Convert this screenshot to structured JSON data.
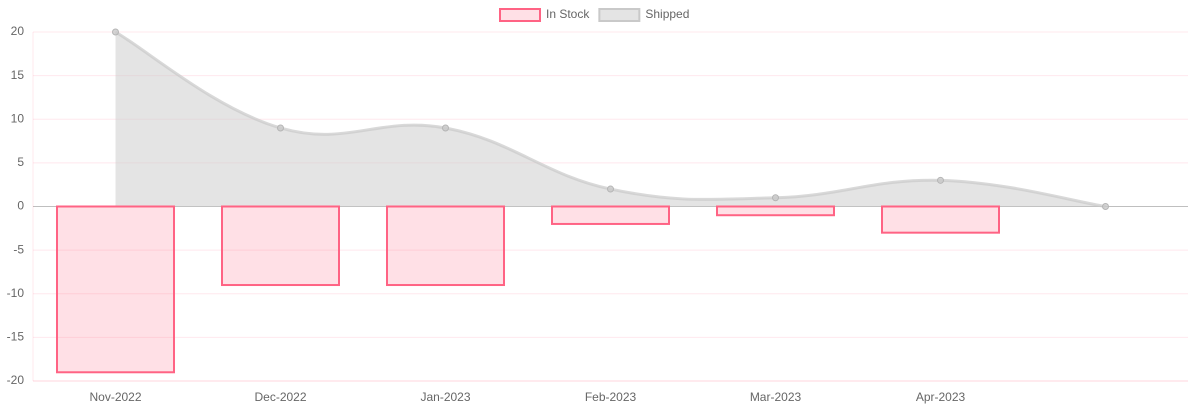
{
  "chart_data": {
    "type": "bar-line",
    "categories": [
      "Nov-2022",
      "Dec-2022",
      "Jan-2023",
      "Feb-2023",
      "Mar-2023",
      "Apr-2023",
      null
    ],
    "series": [
      {
        "name": "In Stock",
        "type": "bar",
        "color": "#ff6384",
        "values": [
          -19,
          -9,
          -9,
          -2,
          -1,
          -3,
          null
        ]
      },
      {
        "name": "Shipped",
        "type": "line",
        "color": "#c9c9c9",
        "fill": true,
        "values": [
          20,
          9,
          9,
          2,
          1,
          3,
          0
        ]
      }
    ],
    "ylim": [
      -20,
      20
    ],
    "yticks": [
      -20,
      -15,
      -10,
      -5,
      0,
      5,
      10,
      15,
      20
    ],
    "grid": true,
    "legend": "top"
  }
}
